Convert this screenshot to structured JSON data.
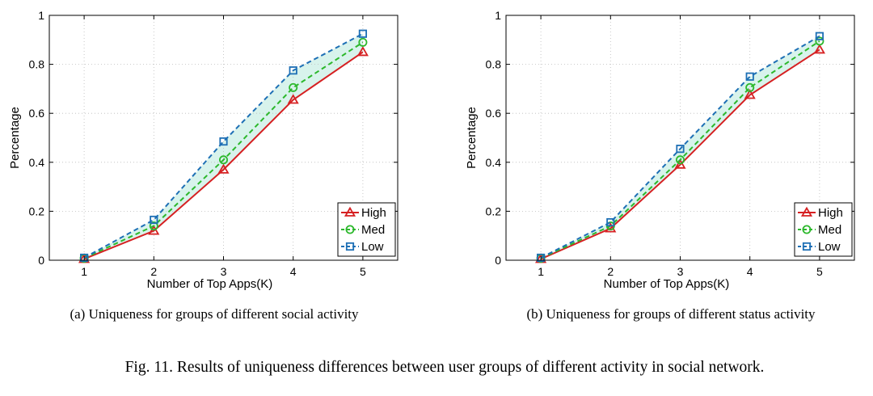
{
  "figure_caption": "Fig. 11.  Results of uniqueness differences between user groups of different activity in social network.",
  "colors": {
    "High": "#d62022",
    "Med": "#2cb82c",
    "Low": "#1d6fb5",
    "fill": "#d8f3ec"
  },
  "chart_data": [
    {
      "type": "line",
      "caption": "(a)  Uniqueness for groups of different social activity",
      "xlabel": "Number of Top Apps(K)",
      "ylabel": "Percentage",
      "x": [
        1,
        2,
        3,
        4,
        5
      ],
      "xticks": [
        "1",
        "2",
        "3",
        "4",
        "5"
      ],
      "yticks": [
        "0",
        "0.2",
        "0.4",
        "0.6",
        "0.8",
        "1"
      ],
      "xlim": [
        0.5,
        5.5
      ],
      "ylim": [
        0,
        1
      ],
      "grid": true,
      "legend_position": "bottom-right",
      "series": [
        {
          "name": "High",
          "marker": "triangle",
          "line": "solid",
          "values": [
            0.005,
            0.12,
            0.37,
            0.655,
            0.85
          ]
        },
        {
          "name": "Med",
          "marker": "circle",
          "line": "dashed",
          "values": [
            0.008,
            0.14,
            0.41,
            0.705,
            0.89
          ]
        },
        {
          "name": "Low",
          "marker": "square",
          "line": "dashed",
          "values": [
            0.01,
            0.165,
            0.485,
            0.775,
            0.925
          ]
        }
      ]
    },
    {
      "type": "line",
      "caption": "(b)  Uniqueness for groups of different status activity",
      "xlabel": "Number of Top Apps(K)",
      "ylabel": "Percentage",
      "x": [
        1,
        2,
        3,
        4,
        5
      ],
      "xticks": [
        "1",
        "2",
        "3",
        "4",
        "5"
      ],
      "yticks": [
        "0",
        "0.2",
        "0.4",
        "0.6",
        "0.8",
        "1"
      ],
      "xlim": [
        0.5,
        5.5
      ],
      "ylim": [
        0,
        1
      ],
      "grid": true,
      "legend_position": "bottom-right",
      "series": [
        {
          "name": "High",
          "marker": "triangle",
          "line": "solid",
          "values": [
            0.005,
            0.13,
            0.39,
            0.675,
            0.86
          ]
        },
        {
          "name": "Med",
          "marker": "circle",
          "line": "dashed",
          "values": [
            0.008,
            0.14,
            0.41,
            0.705,
            0.895
          ]
        },
        {
          "name": "Low",
          "marker": "square",
          "line": "dashed",
          "values": [
            0.01,
            0.155,
            0.455,
            0.75,
            0.915
          ]
        }
      ]
    }
  ]
}
